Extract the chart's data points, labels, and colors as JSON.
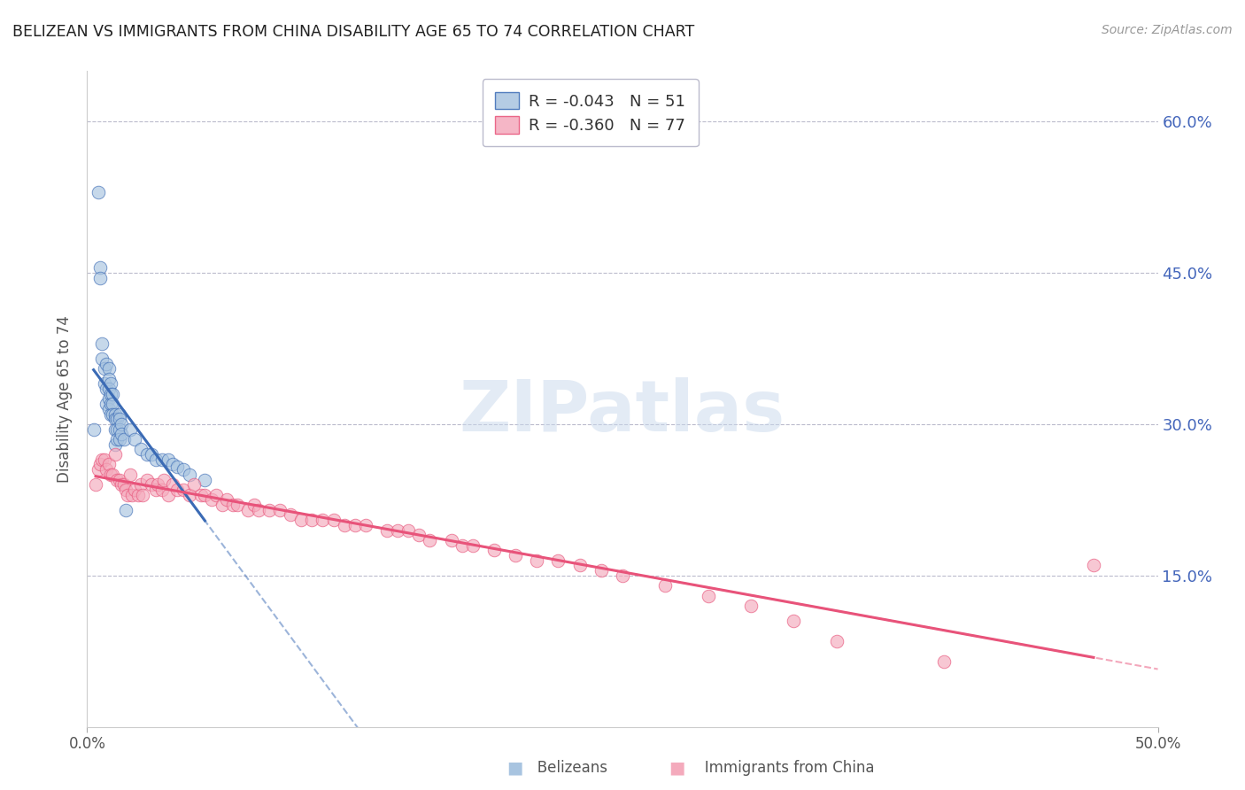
{
  "title": "BELIZEAN VS IMMIGRANTS FROM CHINA DISABILITY AGE 65 TO 74 CORRELATION CHART",
  "source": "Source: ZipAtlas.com",
  "ylabel": "Disability Age 65 to 74",
  "xlim": [
    0.0,
    0.5
  ],
  "ylim": [
    0.0,
    0.65
  ],
  "yticks": [
    0.15,
    0.3,
    0.45,
    0.6
  ],
  "ytick_labels": [
    "15.0%",
    "30.0%",
    "45.0%",
    "60.0%"
  ],
  "legend_r1": "R = -0.043",
  "legend_n1": "N = 51",
  "legend_r2": "R = -0.360",
  "legend_n2": "N = 77",
  "blue_color": "#A8C4E0",
  "pink_color": "#F4AABC",
  "line_blue": "#3B6BB5",
  "line_pink": "#E8537A",
  "watermark_text": "ZIPatlas",
  "belizean_x": [
    0.003,
    0.005,
    0.006,
    0.006,
    0.007,
    0.007,
    0.008,
    0.008,
    0.009,
    0.009,
    0.009,
    0.01,
    0.01,
    0.01,
    0.01,
    0.01,
    0.011,
    0.011,
    0.011,
    0.011,
    0.012,
    0.012,
    0.012,
    0.013,
    0.013,
    0.013,
    0.013,
    0.014,
    0.014,
    0.014,
    0.015,
    0.015,
    0.015,
    0.015,
    0.016,
    0.016,
    0.017,
    0.018,
    0.02,
    0.022,
    0.025,
    0.028,
    0.03,
    0.032,
    0.035,
    0.038,
    0.04,
    0.042,
    0.045,
    0.048,
    0.055
  ],
  "belizean_y": [
    0.295,
    0.53,
    0.455,
    0.445,
    0.38,
    0.365,
    0.355,
    0.34,
    0.36,
    0.335,
    0.32,
    0.355,
    0.345,
    0.335,
    0.325,
    0.315,
    0.34,
    0.33,
    0.32,
    0.31,
    0.33,
    0.32,
    0.31,
    0.31,
    0.305,
    0.295,
    0.28,
    0.305,
    0.295,
    0.285,
    0.31,
    0.305,
    0.295,
    0.285,
    0.3,
    0.29,
    0.285,
    0.215,
    0.295,
    0.285,
    0.275,
    0.27,
    0.27,
    0.265,
    0.265,
    0.265,
    0.26,
    0.258,
    0.255,
    0.25,
    0.245
  ],
  "china_x": [
    0.004,
    0.005,
    0.006,
    0.007,
    0.008,
    0.009,
    0.01,
    0.011,
    0.012,
    0.013,
    0.014,
    0.015,
    0.016,
    0.017,
    0.018,
    0.019,
    0.02,
    0.021,
    0.022,
    0.024,
    0.025,
    0.026,
    0.028,
    0.03,
    0.032,
    0.033,
    0.035,
    0.036,
    0.038,
    0.04,
    0.042,
    0.045,
    0.048,
    0.05,
    0.053,
    0.055,
    0.058,
    0.06,
    0.063,
    0.065,
    0.068,
    0.07,
    0.075,
    0.078,
    0.08,
    0.085,
    0.09,
    0.095,
    0.1,
    0.105,
    0.11,
    0.115,
    0.12,
    0.125,
    0.13,
    0.14,
    0.145,
    0.15,
    0.155,
    0.16,
    0.17,
    0.175,
    0.18,
    0.19,
    0.2,
    0.21,
    0.22,
    0.23,
    0.24,
    0.25,
    0.27,
    0.29,
    0.31,
    0.33,
    0.35,
    0.4,
    0.47
  ],
  "china_y": [
    0.24,
    0.255,
    0.26,
    0.265,
    0.265,
    0.255,
    0.26,
    0.25,
    0.25,
    0.27,
    0.245,
    0.245,
    0.24,
    0.24,
    0.235,
    0.23,
    0.25,
    0.23,
    0.235,
    0.23,
    0.24,
    0.23,
    0.245,
    0.24,
    0.235,
    0.24,
    0.235,
    0.245,
    0.23,
    0.24,
    0.235,
    0.235,
    0.23,
    0.24,
    0.23,
    0.23,
    0.225,
    0.23,
    0.22,
    0.225,
    0.22,
    0.22,
    0.215,
    0.22,
    0.215,
    0.215,
    0.215,
    0.21,
    0.205,
    0.205,
    0.205,
    0.205,
    0.2,
    0.2,
    0.2,
    0.195,
    0.195,
    0.195,
    0.19,
    0.185,
    0.185,
    0.18,
    0.18,
    0.175,
    0.17,
    0.165,
    0.165,
    0.16,
    0.155,
    0.15,
    0.14,
    0.13,
    0.12,
    0.105,
    0.085,
    0.065,
    0.16
  ]
}
